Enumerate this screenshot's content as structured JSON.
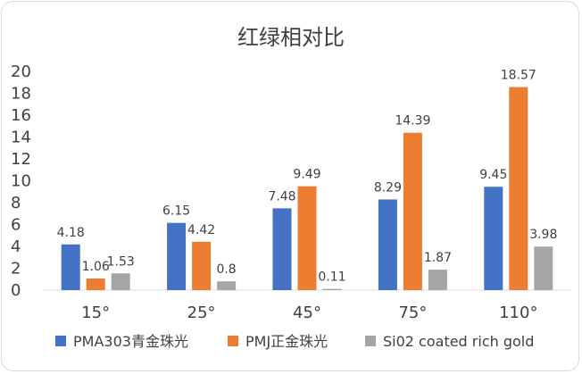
{
  "chart_data": {
    "type": "bar",
    "title": "红绿相对比",
    "categories": [
      "15°",
      "25°",
      "45°",
      "75°",
      "110°"
    ],
    "series": [
      {
        "name": "PMA303青金珠光",
        "color": "#4472C4",
        "values": [
          4.18,
          6.15,
          7.48,
          8.29,
          9.45
        ]
      },
      {
        "name": "PMJ正金珠光",
        "color": "#ED7D31",
        "values": [
          1.06,
          4.42,
          9.49,
          14.39,
          18.57
        ]
      },
      {
        "name": "Si02 coated rich gold",
        "color": "#A5A5A5",
        "values": [
          1.53,
          0.8,
          0.11,
          1.87,
          3.98
        ]
      }
    ],
    "ylim": [
      0,
      20
    ],
    "yticks": [
      "0",
      "2",
      "4",
      "6",
      "8",
      "10",
      "12",
      "14",
      "16",
      "18",
      "20"
    ],
    "grid": false,
    "legend_position": "bottom",
    "data_labels": true
  }
}
